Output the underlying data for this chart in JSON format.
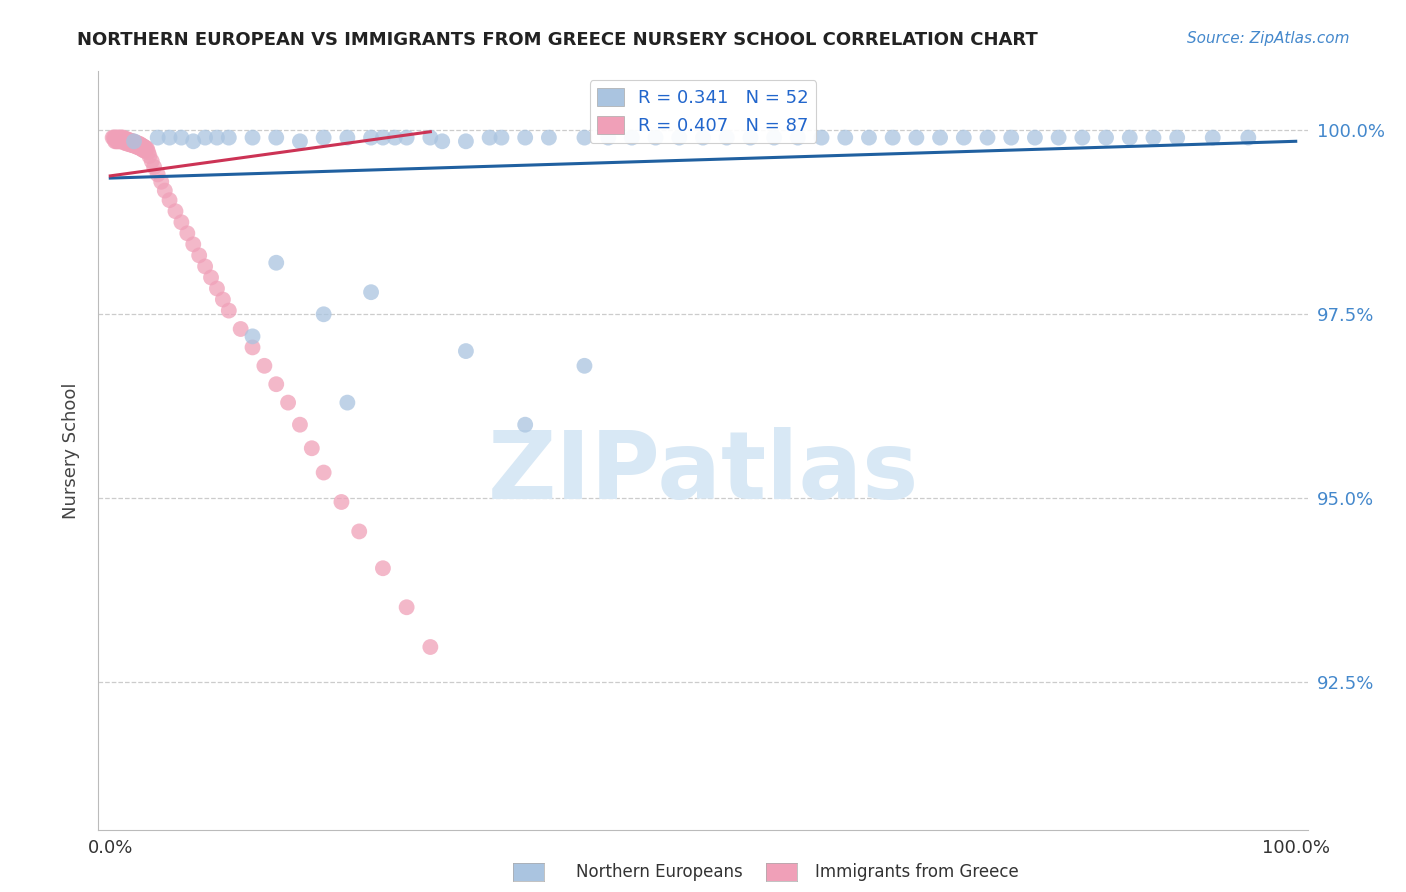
{
  "title": "NORTHERN EUROPEAN VS IMMIGRANTS FROM GREECE NURSERY SCHOOL CORRELATION CHART",
  "source": "Source: ZipAtlas.com",
  "ylabel": "Nursery School",
  "ytick_vals": [
    0.925,
    0.95,
    0.975,
    1.0
  ],
  "ytick_labels": [
    "92.5%",
    "95.0%",
    "97.5%",
    "100.0%"
  ],
  "xtick_vals": [
    0.0,
    0.1,
    0.2,
    0.3,
    0.4,
    0.5,
    0.6,
    0.7,
    0.8,
    0.9,
    1.0
  ],
  "xtick_labels_show": {
    "0.0": "0.0%",
    "1.0": "100.0%"
  },
  "legend_r1": "R = 0.341   N = 52",
  "legend_r2": "R = 0.407   N = 87",
  "legend_entries": [
    "Northern Europeans",
    "Immigrants from Greece"
  ],
  "blue_color": "#aac4e0",
  "pink_color": "#f0a0b8",
  "blue_line_color": "#2060a0",
  "pink_line_color": "#cc3355",
  "watermark_color": "#d8e8f5",
  "background_color": "#ffffff",
  "xlim": [
    -0.01,
    1.01
  ],
  "ylim": [
    0.905,
    1.008
  ],
  "blue_x": [
    0.02,
    0.04,
    0.05,
    0.06,
    0.07,
    0.08,
    0.09,
    0.1,
    0.12,
    0.14,
    0.16,
    0.18,
    0.2,
    0.22,
    0.23,
    0.24,
    0.25,
    0.27,
    0.28,
    0.3,
    0.32,
    0.33,
    0.35,
    0.37,
    0.4,
    0.42,
    0.44,
    0.46,
    0.48,
    0.5,
    0.52,
    0.54,
    0.56,
    0.58,
    0.6,
    0.62,
    0.64,
    0.66,
    0.68,
    0.7,
    0.72,
    0.74,
    0.76,
    0.78,
    0.8,
    0.82,
    0.84,
    0.86,
    0.88,
    0.9,
    0.93,
    0.96
  ],
  "blue_y": [
    0.9985,
    0.999,
    0.999,
    0.999,
    0.9985,
    0.999,
    0.999,
    0.999,
    0.999,
    0.999,
    0.9985,
    0.999,
    0.999,
    0.999,
    0.999,
    0.999,
    0.999,
    0.999,
    0.9985,
    0.9985,
    0.999,
    0.999,
    0.999,
    0.999,
    0.999,
    0.999,
    0.999,
    0.999,
    0.999,
    0.999,
    0.999,
    0.999,
    0.999,
    0.999,
    0.999,
    0.999,
    0.999,
    0.999,
    0.999,
    0.999,
    0.999,
    0.999,
    0.999,
    0.999,
    0.999,
    0.999,
    0.999,
    0.999,
    0.999,
    0.999,
    0.999,
    0.999
  ],
  "blue_outlier_x": [
    0.12,
    0.14,
    0.18,
    0.2,
    0.22,
    0.3,
    0.35,
    0.4
  ],
  "blue_outlier_y": [
    0.972,
    0.982,
    0.975,
    0.963,
    0.978,
    0.97,
    0.96,
    0.968
  ],
  "pink_x": [
    0.002,
    0.003,
    0.004,
    0.004,
    0.005,
    0.005,
    0.006,
    0.006,
    0.007,
    0.007,
    0.008,
    0.008,
    0.009,
    0.009,
    0.01,
    0.01,
    0.011,
    0.011,
    0.012,
    0.012,
    0.013,
    0.013,
    0.014,
    0.014,
    0.015,
    0.015,
    0.016,
    0.016,
    0.017,
    0.017,
    0.018,
    0.018,
    0.019,
    0.019,
    0.02,
    0.02,
    0.021,
    0.021,
    0.022,
    0.022,
    0.023,
    0.023,
    0.024,
    0.024,
    0.025,
    0.025,
    0.026,
    0.026,
    0.027,
    0.027,
    0.028,
    0.028,
    0.029,
    0.029,
    0.03,
    0.031,
    0.032,
    0.033,
    0.035,
    0.037,
    0.04,
    0.043,
    0.046,
    0.05,
    0.055,
    0.06,
    0.065,
    0.07,
    0.075,
    0.08,
    0.085,
    0.09,
    0.095,
    0.1,
    0.11,
    0.12,
    0.13,
    0.14,
    0.15,
    0.16,
    0.17,
    0.18,
    0.195,
    0.21,
    0.23,
    0.25,
    0.27
  ],
  "pink_y": [
    0.999,
    0.999,
    0.999,
    0.9985,
    0.999,
    0.9985,
    0.999,
    0.9985,
    0.999,
    0.9985,
    0.999,
    0.9985,
    0.999,
    0.9985,
    0.999,
    0.9985,
    0.999,
    0.9985,
    0.9988,
    0.9983,
    0.9988,
    0.9983,
    0.9988,
    0.9982,
    0.9987,
    0.9982,
    0.9986,
    0.9981,
    0.9986,
    0.9981,
    0.9985,
    0.998,
    0.9985,
    0.998,
    0.9984,
    0.9979,
    0.9984,
    0.9979,
    0.9983,
    0.9978,
    0.9982,
    0.9977,
    0.9982,
    0.9977,
    0.9981,
    0.9976,
    0.998,
    0.9975,
    0.9979,
    0.9974,
    0.9978,
    0.9973,
    0.9977,
    0.9972,
    0.9976,
    0.9975,
    0.997,
    0.9965,
    0.9958,
    0.995,
    0.994,
    0.993,
    0.9918,
    0.9905,
    0.989,
    0.9875,
    0.986,
    0.9845,
    0.983,
    0.9815,
    0.98,
    0.9785,
    0.977,
    0.9755,
    0.973,
    0.9705,
    0.968,
    0.9655,
    0.963,
    0.96,
    0.9568,
    0.9535,
    0.9495,
    0.9455,
    0.9405,
    0.9352,
    0.9298
  ],
  "blue_line_x": [
    0.0,
    1.0
  ],
  "blue_line_y": [
    0.9935,
    0.9985
  ],
  "pink_line_x": [
    0.0,
    0.27
  ],
  "pink_line_y": [
    0.9938,
    0.9998
  ]
}
